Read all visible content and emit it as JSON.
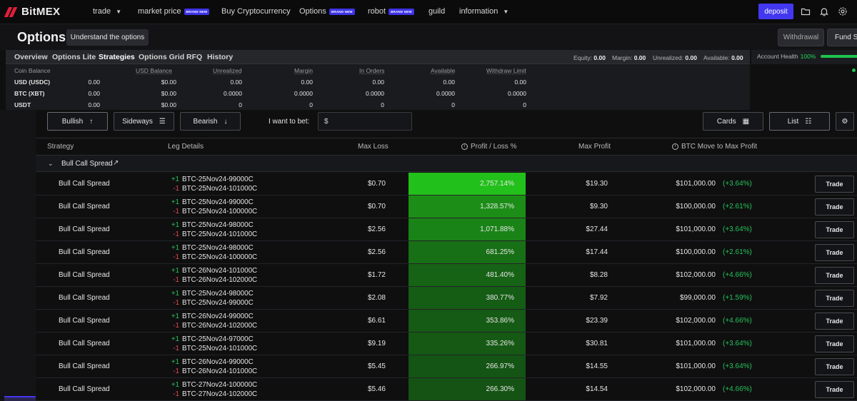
{
  "nav": {
    "brand": "BitMEX",
    "items": [
      {
        "label": "trade",
        "badge": "",
        "caret": true
      },
      {
        "label": "market price",
        "badge": "BRAND NEW",
        "caret": false
      },
      {
        "label": "Buy Cryptocurrency",
        "badge": "",
        "caret": false
      },
      {
        "label": "Options",
        "badge": "BRAND NEW",
        "caret": false
      },
      {
        "label": "robot",
        "badge": "BRAND NEW",
        "caret": false
      },
      {
        "label": "guild",
        "badge": "",
        "caret": false
      },
      {
        "label": "information",
        "badge": "",
        "caret": true
      }
    ],
    "deposit_label": "deposit"
  },
  "header": {
    "title": "Options",
    "understand_label": "Understand the options",
    "withdrawal_label": "Withdrawal",
    "fund_label": "Fund Se"
  },
  "tabs": [
    "Overview",
    "Options Lite",
    "Strategies",
    "Options Grid",
    "RFQ",
    "History"
  ],
  "active_tab": "Strategies",
  "equity": {
    "equity_label": "Equity:",
    "equity_value": "0.00",
    "margin_label": "Margin:",
    "margin_value": "0.00",
    "unrealized_label": "Unrealized:",
    "unrealized_value": "0.00",
    "available_label": "Available:",
    "available_value": "0.00"
  },
  "health": {
    "label": "Account Health",
    "value": "100%"
  },
  "balance": {
    "headers": [
      "Coin Balance",
      "USD Balance",
      "Unrealized",
      "Margin",
      "In Orders",
      "Available",
      "Withdraw Limit"
    ],
    "rows": [
      {
        "name": "USD (USDC)",
        "coin": "0.00",
        "usd": "$0.00",
        "unrealized": "0.00",
        "margin": "0.00",
        "in_orders": "0.00",
        "available": "0.00",
        "withdraw": "0.00"
      },
      {
        "name": "BTC (XBT)",
        "coin": "0.00",
        "usd": "$0.00",
        "unrealized": "0.0000",
        "margin": "0.0000",
        "in_orders": "0.0000",
        "available": "0.0000",
        "withdraw": "0.0000"
      },
      {
        "name": "USDT",
        "coin": "0.00",
        "usd": "$0.00",
        "unrealized": "0",
        "margin": "0",
        "in_orders": "0",
        "available": "0",
        "withdraw": "0"
      }
    ]
  },
  "filters": {
    "bullish": "Bullish",
    "sideways": "Sideways",
    "bearish": "Bearish",
    "bet_label": "I want to bet:",
    "bet_prefix": "$",
    "cards": "Cards",
    "list": "List"
  },
  "columns": {
    "strategy": "Strategy",
    "legs": "Leg Details",
    "max_loss": "Max Loss",
    "pl": "Profit / Loss %",
    "max_profit": "Max Profit",
    "move": "BTC Move to Max Profit"
  },
  "group": {
    "name": "Bull Call Spread"
  },
  "trade_label": "Trade",
  "rows": [
    {
      "strategy": "Bull Call Spread",
      "leg1_qty": "+1",
      "leg1": "BTC-25Nov24-99000C",
      "leg2_qty": "-1",
      "leg2": "BTC-25Nov24-101000C",
      "max_loss": "$0.70",
      "pl": "2,757.14%",
      "pl_value": 2757.14,
      "max_profit": "$19.30",
      "move": "$101,000.00",
      "move_pct": "(+3.64%)"
    },
    {
      "strategy": "Bull Call Spread",
      "leg1_qty": "+1",
      "leg1": "BTC-25Nov24-99000C",
      "leg2_qty": "-1",
      "leg2": "BTC-25Nov24-100000C",
      "max_loss": "$0.70",
      "pl": "1,328.57%",
      "pl_value": 1328.57,
      "max_profit": "$9.30",
      "move": "$100,000.00",
      "move_pct": "(+2.61%)"
    },
    {
      "strategy": "Bull Call Spread",
      "leg1_qty": "+1",
      "leg1": "BTC-25Nov24-98000C",
      "leg2_qty": "-1",
      "leg2": "BTC-25Nov24-101000C",
      "max_loss": "$2.56",
      "pl": "1,071.88%",
      "pl_value": 1071.88,
      "max_profit": "$27.44",
      "move": "$101,000.00",
      "move_pct": "(+3.64%)"
    },
    {
      "strategy": "Bull Call Spread",
      "leg1_qty": "+1",
      "leg1": "BTC-25Nov24-98000C",
      "leg2_qty": "-1",
      "leg2": "BTC-25Nov24-100000C",
      "max_loss": "$2.56",
      "pl": "681.25%",
      "pl_value": 681.25,
      "max_profit": "$17.44",
      "move": "$100,000.00",
      "move_pct": "(+2.61%)"
    },
    {
      "strategy": "Bull Call Spread",
      "leg1_qty": "+1",
      "leg1": "BTC-26Nov24-101000C",
      "leg2_qty": "-1",
      "leg2": "BTC-26Nov24-102000C",
      "max_loss": "$1.72",
      "pl": "481.40%",
      "pl_value": 481.4,
      "max_profit": "$8.28",
      "move": "$102,000.00",
      "move_pct": "(+4.66%)"
    },
    {
      "strategy": "Bull Call Spread",
      "leg1_qty": "+1",
      "leg1": "BTC-25Nov24-98000C",
      "leg2_qty": "-1",
      "leg2": "BTC-25Nov24-99000C",
      "max_loss": "$2.08",
      "pl": "380.77%",
      "pl_value": 380.77,
      "max_profit": "$7.92",
      "move": "$99,000.00",
      "move_pct": "(+1.59%)"
    },
    {
      "strategy": "Bull Call Spread",
      "leg1_qty": "+1",
      "leg1": "BTC-26Nov24-99000C",
      "leg2_qty": "-1",
      "leg2": "BTC-26Nov24-102000C",
      "max_loss": "$6.61",
      "pl": "353.86%",
      "pl_value": 353.86,
      "max_profit": "$23.39",
      "move": "$102,000.00",
      "move_pct": "(+4.66%)"
    },
    {
      "strategy": "Bull Call Spread",
      "leg1_qty": "+1",
      "leg1": "BTC-25Nov24-97000C",
      "leg2_qty": "-1",
      "leg2": "BTC-25Nov24-101000C",
      "max_loss": "$9.19",
      "pl": "335.26%",
      "pl_value": 335.26,
      "max_profit": "$30.81",
      "move": "$101,000.00",
      "move_pct": "(+3.64%)"
    },
    {
      "strategy": "Bull Call Spread",
      "leg1_qty": "+1",
      "leg1": "BTC-26Nov24-99000C",
      "leg2_qty": "-1",
      "leg2": "BTC-26Nov24-101000C",
      "max_loss": "$5.45",
      "pl": "266.97%",
      "pl_value": 266.97,
      "max_profit": "$14.55",
      "move": "$101,000.00",
      "move_pct": "(+3.64%)"
    },
    {
      "strategy": "Bull Call Spread",
      "leg1_qty": "+1",
      "leg1": "BTC-27Nov24-100000C",
      "leg2_qty": "-1",
      "leg2": "BTC-27Nov24-102000C",
      "max_loss": "$5.46",
      "pl": "266.30%",
      "pl_value": 266.3,
      "max_profit": "$14.54",
      "move": "$102,000.00",
      "move_pct": "(+4.66%)"
    }
  ],
  "colors": {
    "accent": "#4338f0",
    "positive": "#26c35a",
    "negative": "#e04b4b",
    "heat_max": "#22c01a",
    "heat_min": "#0f0f10"
  }
}
